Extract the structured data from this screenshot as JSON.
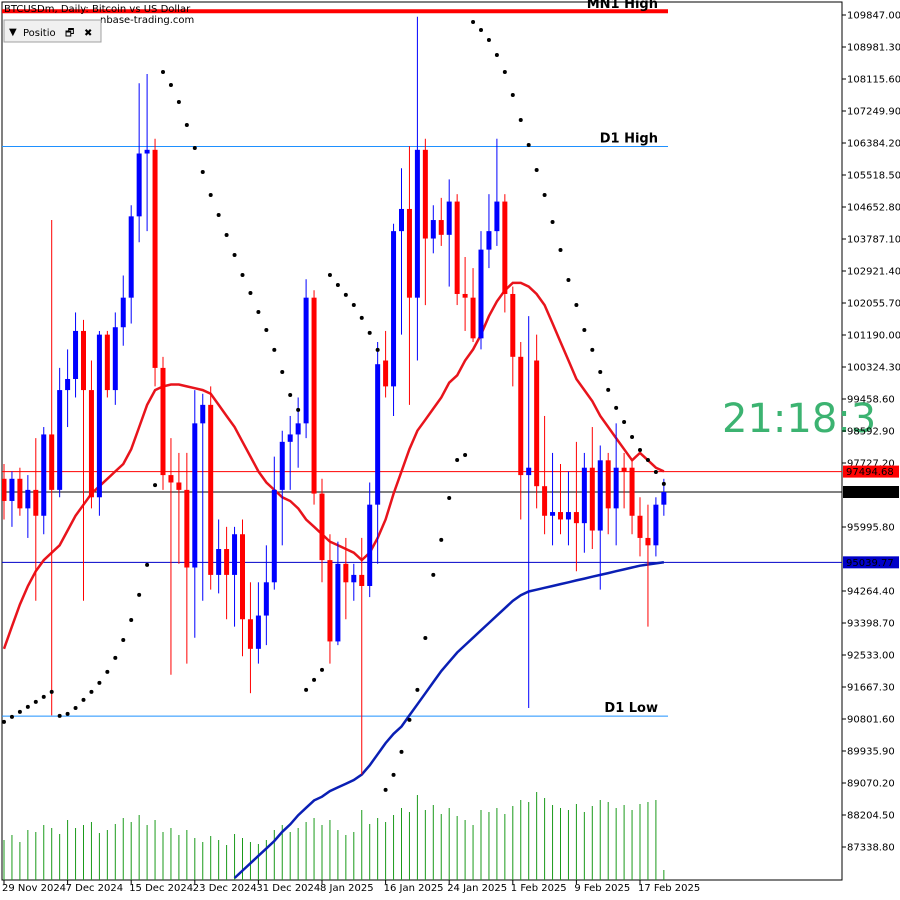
{
  "chart_data": {
    "type": "candlestick",
    "title": "BTCUSDm, Daily:  Bitcoin vs US Dollar",
    "watermark": "nbase-trading.com",
    "panel_label": "Positio",
    "timer": "21:18:3",
    "up_color": "#0000ff",
    "down_color": "#ff0000",
    "ylim": [
      86446,
      110253
    ],
    "yticks": [
      {
        "value": 109847,
        "label": "109847.00"
      },
      {
        "value": 108981.3,
        "label": "108981.30"
      },
      {
        "value": 108115.6,
        "label": "108115.60"
      },
      {
        "value": 107249.9,
        "label": "107249.90"
      },
      {
        "value": 106384.2,
        "label": "106384.20"
      },
      {
        "value": 105518.5,
        "label": "105518.50"
      },
      {
        "value": 104652.8,
        "label": "104652.80"
      },
      {
        "value": 103787.1,
        "label": "103787.10"
      },
      {
        "value": 102921.4,
        "label": "102921.40"
      },
      {
        "value": 102055.7,
        "label": "102055.70"
      },
      {
        "value": 101190,
        "label": "101190.00"
      },
      {
        "value": 100324.3,
        "label": "100324.30"
      },
      {
        "value": 99458.6,
        "label": "99458.60"
      },
      {
        "value": 98592.9,
        "label": "98592.90"
      },
      {
        "value": 97727.2,
        "label": "97727.20"
      },
      {
        "value": 95995.8,
        "label": "95995.80"
      },
      {
        "value": 94264.4,
        "label": "94264.40"
      },
      {
        "value": 93398.7,
        "label": "93398.70"
      },
      {
        "value": 92533,
        "label": "92533.00"
      },
      {
        "value": 91667.3,
        "label": "91667.30"
      },
      {
        "value": 90801.6,
        "label": "90801.60"
      },
      {
        "value": 89935.9,
        "label": "89935.90"
      },
      {
        "value": 89070.2,
        "label": "89070.20"
      },
      {
        "value": 88204.5,
        "label": "88204.50"
      },
      {
        "value": 87338.8,
        "label": "87338.80"
      }
    ],
    "categories": [
      "29 Nov 2024",
      null,
      null,
      null,
      null,
      null,
      null,
      null,
      "7 Dec 2024",
      null,
      null,
      null,
      null,
      null,
      null,
      null,
      "15 Dec 2024",
      null,
      null,
      null,
      null,
      null,
      null,
      null,
      "23 Dec 2024",
      null,
      null,
      null,
      null,
      null,
      null,
      null,
      "31 Dec 2024",
      null,
      null,
      null,
      null,
      null,
      null,
      null,
      "8 Jan 2025",
      null,
      null,
      null,
      null,
      null,
      null,
      null,
      "16 Jan 2025",
      null,
      null,
      null,
      null,
      null,
      null,
      null,
      "24 Jan 2025",
      null,
      null,
      null,
      null,
      null,
      null,
      null,
      "1 Feb 2025",
      null,
      null,
      null,
      null,
      null,
      null,
      null,
      "9 Feb 2025",
      null,
      null,
      null,
      null,
      null,
      null,
      null,
      "17 Feb 2025",
      null,
      null,
      null
    ],
    "ohlc": [
      [
        97300,
        97700,
        96200,
        96700
      ],
      [
        96700,
        97500,
        96000,
        97300
      ],
      [
        97300,
        97600,
        96300,
        96500
      ],
      [
        96500,
        97400,
        95700,
        97000
      ],
      [
        97000,
        98400,
        94000,
        96300
      ],
      [
        96300,
        98700,
        95800,
        98500
      ],
      [
        98500,
        104300,
        90900,
        97000
      ],
      [
        97000,
        100300,
        96800,
        99700
      ],
      [
        99700,
        100800,
        98700,
        100000
      ],
      [
        100000,
        101800,
        99500,
        101300
      ],
      [
        101300,
        101600,
        94000,
        99700
      ],
      [
        99700,
        100500,
        96500,
        96800
      ],
      [
        96800,
        101300,
        96300,
        101200
      ],
      [
        101200,
        101300,
        99500,
        99700
      ],
      [
        99700,
        101800,
        99300,
        101400
      ],
      [
        101400,
        102800,
        100900,
        102200
      ],
      [
        102200,
        104700,
        101500,
        104400
      ],
      [
        104400,
        108000,
        103700,
        106100
      ],
      [
        106100,
        108250,
        104000,
        106200
      ],
      [
        106200,
        106500,
        99800,
        100300
      ],
      [
        100300,
        100600,
        97000,
        97400
      ],
      [
        97400,
        98400,
        92000,
        97200
      ],
      [
        97200,
        98000,
        95000,
        97000
      ],
      [
        97000,
        98000,
        92300,
        94900
      ],
      [
        94900,
        99700,
        93000,
        98800
      ],
      [
        98800,
        99600,
        94000,
        99300
      ],
      [
        99300,
        99800,
        94300,
        94700
      ],
      [
        94700,
        96200,
        94200,
        95400
      ],
      [
        95400,
        96000,
        93500,
        94700
      ],
      [
        94700,
        96000,
        93300,
        95800
      ],
      [
        95800,
        96200,
        92500,
        93500
      ],
      [
        93500,
        94500,
        91500,
        92700
      ],
      [
        92700,
        94500,
        92300,
        93600
      ],
      [
        93600,
        95500,
        92800,
        94500
      ],
      [
        94500,
        97900,
        94300,
        97000
      ],
      [
        97000,
        98600,
        95500,
        98300
      ],
      [
        98300,
        99000,
        97000,
        98500
      ],
      [
        98500,
        99500,
        97600,
        98800
      ],
      [
        98800,
        102700,
        98400,
        102200
      ],
      [
        102200,
        102400,
        96600,
        96900
      ],
      [
        96900,
        97300,
        94500,
        95100
      ],
      [
        95100,
        95800,
        92300,
        92900
      ],
      [
        92900,
        95600,
        92800,
        95000
      ],
      [
        95000,
        95700,
        93500,
        94500
      ],
      [
        94500,
        95000,
        94000,
        94700
      ],
      [
        94700,
        95700,
        89300,
        94400
      ],
      [
        94400,
        97200,
        94100,
        96600
      ],
      [
        96600,
        101000,
        95000,
        100400
      ],
      [
        100500,
        101300,
        99500,
        99800
      ],
      [
        99800,
        104200,
        99000,
        104000
      ],
      [
        104000,
        105700,
        101200,
        104600
      ],
      [
        104600,
        106300,
        99300,
        102200
      ],
      [
        102200,
        109800,
        100500,
        106200
      ],
      [
        106200,
        106500,
        102000,
        103800
      ],
      [
        103800,
        104700,
        103400,
        104300
      ],
      [
        104300,
        104900,
        103600,
        103900
      ],
      [
        103900,
        105400,
        102500,
        104800
      ],
      [
        104800,
        105000,
        102000,
        102300
      ],
      [
        102300,
        103300,
        101300,
        102200
      ],
      [
        102200,
        103000,
        101000,
        101100
      ],
      [
        101100,
        104000,
        100800,
        103500
      ],
      [
        103500,
        105000,
        103000,
        104000
      ],
      [
        104000,
        106500,
        103600,
        104800
      ],
      [
        104800,
        105000,
        101800,
        102300
      ],
      [
        102300,
        102500,
        99800,
        100600
      ],
      [
        100600,
        101000,
        96200,
        97400
      ],
      [
        97400,
        101700,
        91100,
        97600
      ],
      [
        100500,
        101200,
        96500,
        97100
      ],
      [
        97100,
        99000,
        95800,
        96300
      ],
      [
        96300,
        98000,
        95500,
        96400
      ],
      [
        96400,
        97700,
        95800,
        96200
      ],
      [
        96200,
        97500,
        95500,
        96400
      ],
      [
        96400,
        98300,
        94800,
        96100
      ],
      [
        96100,
        98000,
        95300,
        97600
      ],
      [
        97600,
        98700,
        95400,
        95900
      ],
      [
        95900,
        98200,
        94300,
        97800
      ],
      [
        97800,
        98000,
        95800,
        96500
      ],
      [
        96500,
        98800,
        95500,
        97600
      ],
      [
        97600,
        98000,
        96500,
        97500
      ],
      [
        97600,
        97800,
        95800,
        96300
      ],
      [
        96300,
        96800,
        95200,
        95700
      ],
      [
        95700,
        96600,
        93300,
        95500
      ],
      [
        95500,
        96800,
        95200,
        96600
      ],
      [
        96600,
        97300,
        96300,
        96943
      ]
    ],
    "series": [
      {
        "color": "#e8141c",
        "values": [
          92700,
          93300,
          93900,
          94400,
          94800,
          95100,
          95300,
          95500,
          95900,
          96300,
          96600,
          96900,
          97100,
          97300,
          97500,
          97700,
          98100,
          98700,
          99300,
          99700,
          99800,
          99850,
          99850,
          99800,
          99750,
          99700,
          99600,
          99300,
          99000,
          98700,
          98300,
          97900,
          97500,
          97200,
          97000,
          96800,
          96700,
          96500,
          96200,
          96000,
          95800,
          95600,
          95500,
          95400,
          95300,
          95100,
          95300,
          95700,
          96200,
          96900,
          97500,
          98100,
          98600,
          98900,
          99200,
          99500,
          99900,
          100100,
          100500,
          100800,
          101200,
          101700,
          102100,
          102400,
          102600,
          102600,
          102500,
          102300,
          102000,
          101500,
          101000,
          100500,
          100000,
          99700,
          99400,
          99000,
          98700,
          98400,
          98100,
          97800,
          98000,
          97800,
          97600,
          97500
        ]
      },
      {
        "color": "#0a1fb4",
        "values": [
          null,
          null,
          null,
          null,
          null,
          null,
          null,
          null,
          null,
          null,
          null,
          null,
          null,
          null,
          null,
          null,
          null,
          null,
          null,
          null,
          null,
          null,
          null,
          null,
          null,
          null,
          null,
          null,
          null,
          86500,
          86700,
          86900,
          87100,
          87300,
          87500,
          87750,
          87950,
          88200,
          88400,
          88600,
          88700,
          88850,
          88950,
          89050,
          89150,
          89300,
          89550,
          89850,
          90150,
          90400,
          90600,
          90900,
          91200,
          91500,
          91800,
          92100,
          92350,
          92600,
          92800,
          93000,
          93200,
          93400,
          93600,
          93800,
          94000,
          94150,
          94250,
          94300,
          94350,
          94400,
          94450,
          94500,
          94550,
          94600,
          94650,
          94700,
          94750,
          94800,
          94850,
          94900,
          94950,
          94980,
          95010,
          95040
        ]
      }
    ],
    "sar": {
      "color": "#000000",
      "values": [
        90723,
        90858,
        90993,
        91129,
        91264,
        91399,
        91534,
        90885,
        90940,
        91100,
        91318,
        91535,
        91780,
        92075,
        92455,
        92940,
        93480,
        94158,
        94970,
        97130,
        108306,
        107954,
        107494,
        106872,
        106250,
        105600,
        104978,
        104437,
        103896,
        103355,
        102814,
        102327,
        101813,
        101326,
        100786,
        100190,
        99568,
        99163,
        91589,
        91859,
        92130,
        102814,
        102544,
        102274,
        102003,
        101652,
        101246,
        100786,
        88883,
        89289,
        89911,
        90777,
        91589,
        92994,
        94699,
        95646,
        96782,
        97810,
        97945,
        109658,
        109441,
        109171,
        108765,
        108306,
        107683,
        107007,
        106331,
        105655,
        104978,
        104248,
        103490,
        102679,
        102003,
        101326,
        100786,
        100190,
        99704,
        99217,
        98838,
        98432,
        98080,
        97810,
        97485,
        97161
      ]
    },
    "volume": {
      "color": "#1a9a1a",
      "lim": [
        0,
        100
      ],
      "values": [
        40,
        45,
        38,
        50,
        48,
        55,
        52,
        46,
        60,
        52,
        55,
        58,
        47,
        50,
        56,
        62,
        58,
        65,
        55,
        60,
        48,
        52,
        45,
        50,
        42,
        38,
        44,
        40,
        35,
        46,
        42,
        38,
        36,
        40,
        50,
        55,
        48,
        52,
        58,
        62,
        55,
        60,
        50,
        45,
        48,
        70,
        56,
        62,
        58,
        65,
        72,
        68,
        85,
        70,
        75,
        66,
        72,
        64,
        60,
        55,
        70,
        68,
        72,
        66,
        74,
        80,
        78,
        88,
        82,
        75,
        72,
        70,
        76,
        68,
        74,
        80,
        78,
        72,
        75,
        70,
        76,
        78,
        80,
        10
      ]
    },
    "levels": [
      {
        "name": "MN1 High",
        "value": 109950,
        "color": "#ff0000"
      },
      {
        "name": "D1 High",
        "value": 106290,
        "color": "#1e90ff"
      },
      {
        "name": "D1 Low",
        "value": 90880,
        "color": "#1e90ff"
      }
    ],
    "price_lines": [
      {
        "value": 97494.68,
        "color": "#ff0000"
      },
      {
        "value": 96942.71,
        "color": "#000000"
      },
      {
        "value": 95039.77,
        "color": "#0000c8"
      }
    ]
  }
}
